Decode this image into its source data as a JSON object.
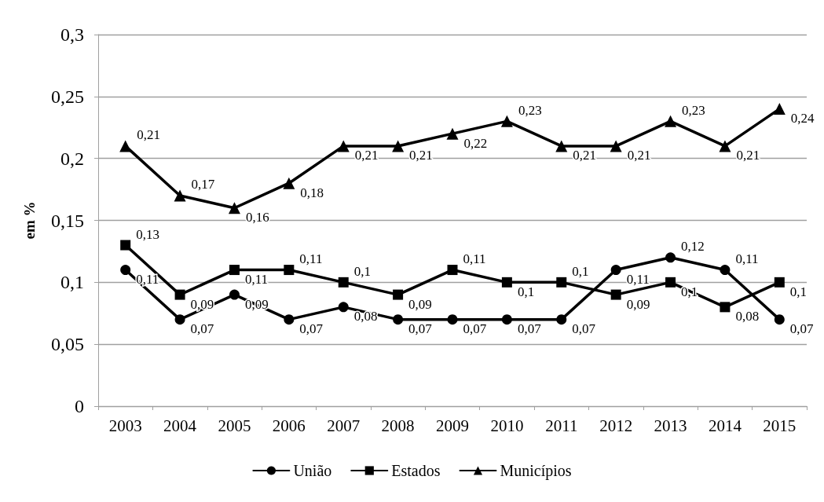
{
  "chart_data": {
    "type": "line",
    "ylabel": "em %",
    "categories": [
      "2003",
      "2004",
      "2005",
      "2006",
      "2007",
      "2008",
      "2009",
      "2010",
      "2011",
      "2012",
      "2013",
      "2014",
      "2015"
    ],
    "ylim": [
      0,
      0.3
    ],
    "yticks": [
      0,
      {
        "value": 0.05,
        "label": "0,05"
      },
      {
        "value": 0.1,
        "label": "0,1"
      },
      {
        "value": 0.15,
        "label": "0,15"
      },
      {
        "value": 0.2,
        "label": "0,2"
      },
      {
        "value": 0.25,
        "label": "0,25"
      },
      {
        "value": 0.3,
        "label": "0,3"
      }
    ],
    "grid": "y",
    "legend": "bottom",
    "line_style": "solid",
    "series": [
      {
        "name": "União",
        "color": "#000000",
        "marker": "circle",
        "values": [
          0.11,
          0.07,
          0.09,
          0.07,
          0.08,
          0.07,
          0.07,
          0.07,
          0.07,
          0.11,
          0.12,
          0.11,
          0.07
        ],
        "value_labels": [
          "0,11",
          "0,07",
          "0,09",
          "0,07",
          "0,08",
          "0,07",
          "0,07",
          "0,07",
          "0,07",
          "0,11",
          "0,12",
          "0,11",
          "0,07"
        ]
      },
      {
        "name": "Estados",
        "color": "#000000",
        "marker": "square",
        "values": [
          0.13,
          0.09,
          0.11,
          0.11,
          0.1,
          0.09,
          0.11,
          0.1,
          0.1,
          0.09,
          0.1,
          0.08,
          0.1
        ],
        "value_labels": [
          "0,13",
          "0,09",
          "0,11",
          "0,11",
          "0,1",
          "0,09",
          "0,11",
          "0,1",
          "0,1",
          "0,09",
          "0,1",
          "0,08",
          "0,1"
        ]
      },
      {
        "name": "Municípios",
        "color": "#000000",
        "marker": "triangle",
        "values": [
          0.21,
          0.17,
          0.16,
          0.18,
          0.21,
          0.21,
          0.22,
          0.23,
          0.21,
          0.21,
          0.23,
          0.21,
          0.24
        ],
        "value_labels": [
          "0,21",
          "0,17",
          "0,16",
          "0,18",
          "0,21",
          "0,21",
          "0,22",
          "0,23",
          "0,21",
          "0,21",
          "0,23",
          "0,21",
          "0,24"
        ]
      }
    ]
  }
}
